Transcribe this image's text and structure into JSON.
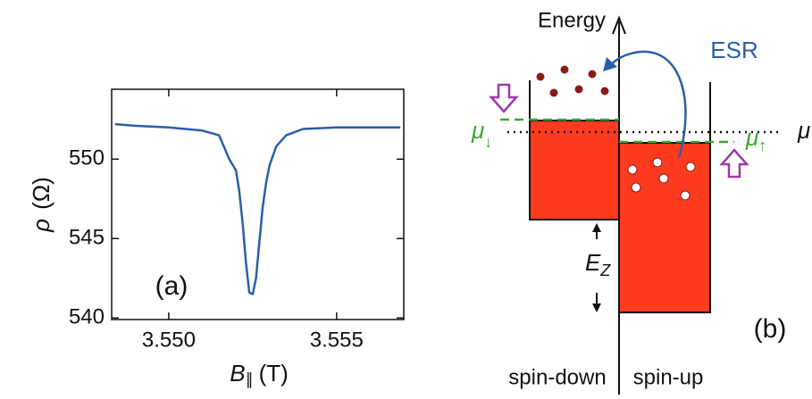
{
  "chart_data": {
    "type": "line",
    "x_label": {
      "symbol": "B",
      "subscript": "∥",
      "unit": "(T)"
    },
    "y_label": {
      "symbol": "ρ",
      "unit": "(Ω)"
    },
    "panel_label": "(a)",
    "x": [
      3.5484,
      3.549,
      3.55,
      3.551,
      3.5515,
      3.5518,
      3.552,
      3.5521,
      3.5522,
      3.5523,
      3.5524,
      3.5525,
      3.5526,
      3.5527,
      3.5528,
      3.5529,
      3.553,
      3.5532,
      3.5535,
      3.554,
      3.555,
      3.556,
      3.5569
    ],
    "series": [
      {
        "color": "#2a5fa8",
        "values": [
          552.2,
          552.1,
          552.0,
          551.8,
          551.5,
          550.0,
          549.3,
          548.0,
          546.0,
          543.5,
          541.6,
          541.5,
          542.5,
          544.8,
          547.0,
          548.5,
          549.6,
          550.8,
          551.5,
          551.9,
          552.0,
          552.0,
          552.0
        ]
      }
    ],
    "xlim": [
      3.5483,
      3.557
    ],
    "ylim": [
      539.9,
      554.4
    ],
    "xticks": [
      {
        "value": 3.55,
        "label": "3.550"
      },
      {
        "value": 3.555,
        "label": "3.555"
      }
    ],
    "yticks": [
      540,
      545,
      550
    ]
  },
  "diagram": {
    "energy": "Energy",
    "esr": "ESR",
    "mu": "μ",
    "mu_down": {
      "symbol": "μ",
      "subscript": "↓"
    },
    "mu_up": {
      "symbol": "μ",
      "subscript": "↑"
    },
    "zeeman": {
      "symbol": "E",
      "subscript": "Z"
    },
    "panel_label": "(b)",
    "spin_down": "spin-down",
    "spin_up": "spin-up"
  }
}
